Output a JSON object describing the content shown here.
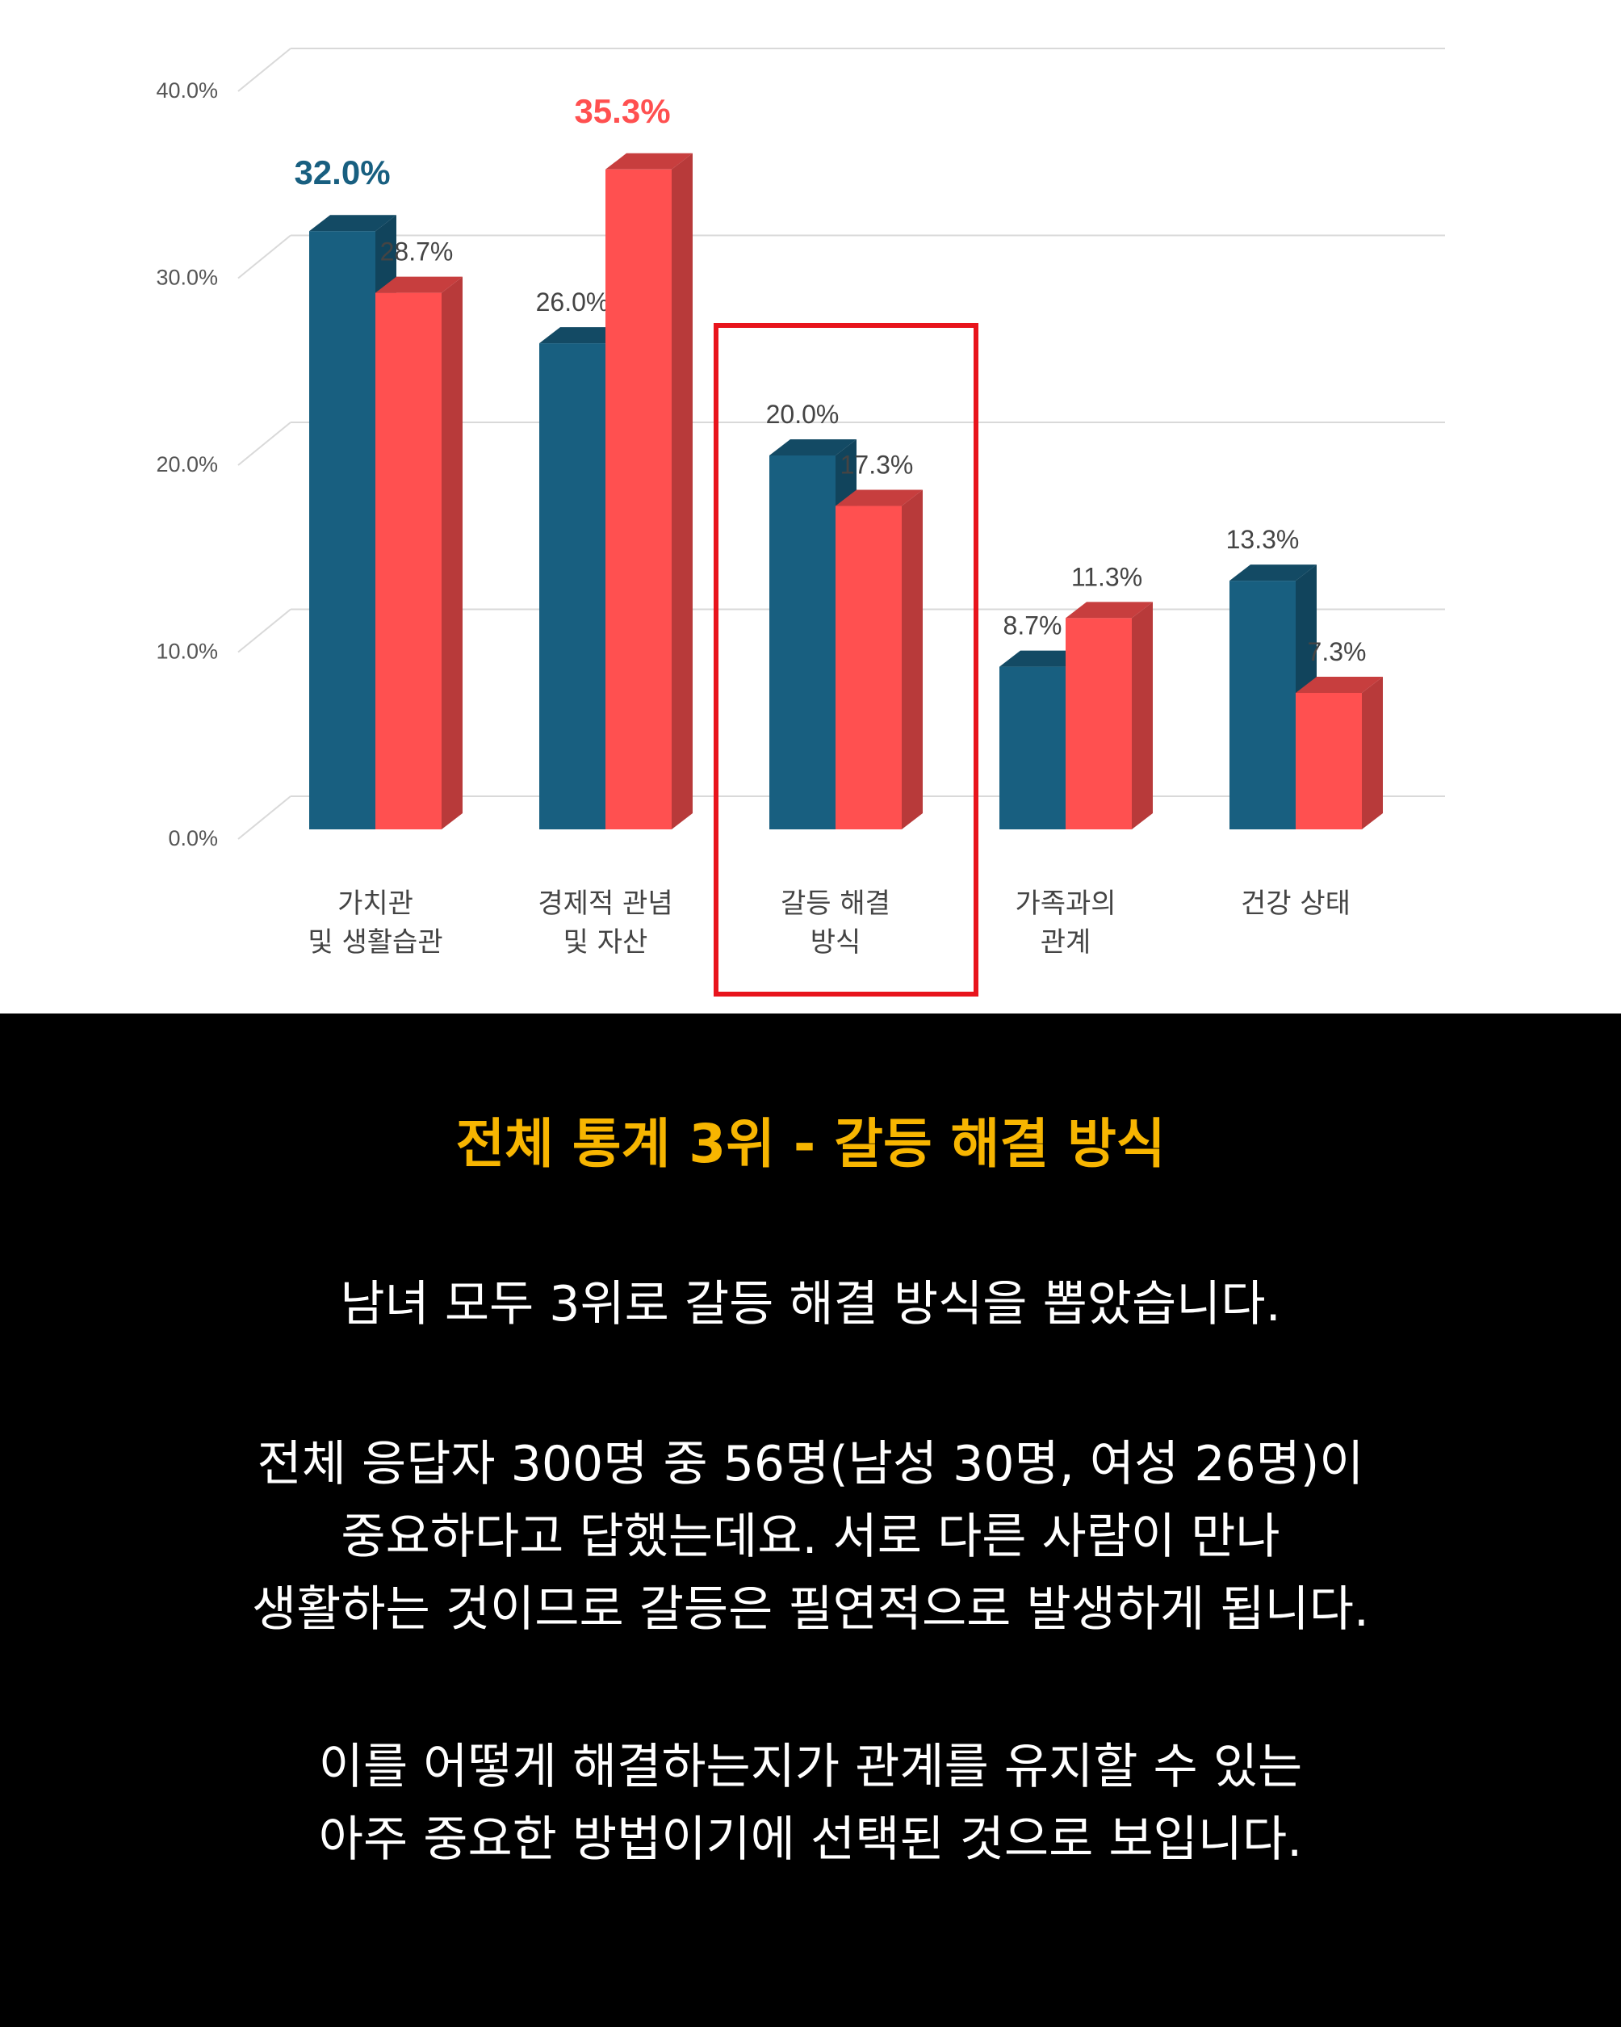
{
  "chart_data": {
    "type": "bar",
    "categories": [
      [
        "가치관",
        "및 생활습관"
      ],
      [
        "경제적 관념",
        "및 자산"
      ],
      [
        "갈등 해결",
        "방식"
      ],
      [
        "가족과의",
        "관계"
      ],
      [
        "건강 상태"
      ]
    ],
    "series": [
      {
        "values": [
          32.0,
          26.0,
          20.0,
          8.7,
          13.3
        ],
        "color": "#185f80",
        "labels": [
          "32.0%",
          "26.0%",
          "20.0%",
          "8.7%",
          "13.3%"
        ]
      },
      {
        "values": [
          28.7,
          35.3,
          17.3,
          11.3,
          7.3
        ],
        "color": "#ff5050",
        "labels": [
          "28.7%",
          "35.3%",
          "17.3%",
          "11.3%",
          "7.3%"
        ]
      }
    ],
    "ylim": [
      0,
      40
    ],
    "yticks": [
      "0.0%",
      "10.0%",
      "20.0%",
      "30.0%",
      "40.0%"
    ],
    "grid": true,
    "highlighted_category": 2,
    "highlight_color": "#e8141c",
    "emphasized_labels": [
      {
        "series": 0,
        "category": 0
      },
      {
        "series": 1,
        "category": 1
      }
    ]
  },
  "headline": "전체 통계 3위 - 갈등 해결 방식",
  "paragraphs": [
    [
      "남녀 모두 3위로 갈등 해결 방식을 뽑았습니다."
    ],
    [
      "전체 응답자 300명 중 56명(남성 30명, 여성 26명)이",
      "중요하다고 답했는데요. 서로 다른 사람이 만나",
      "생활하는 것이므로 갈등은 필연적으로 발생하게 됩니다."
    ],
    [
      "이를 어떻게 해결하는지가 관계를 유지할 수 있는",
      "아주 중요한 방법이기에 선택된 것으로 보입니다."
    ]
  ],
  "colors": {
    "headline": "#f7b500",
    "body_text": "#ffffff",
    "panel_bg": "#000000"
  }
}
